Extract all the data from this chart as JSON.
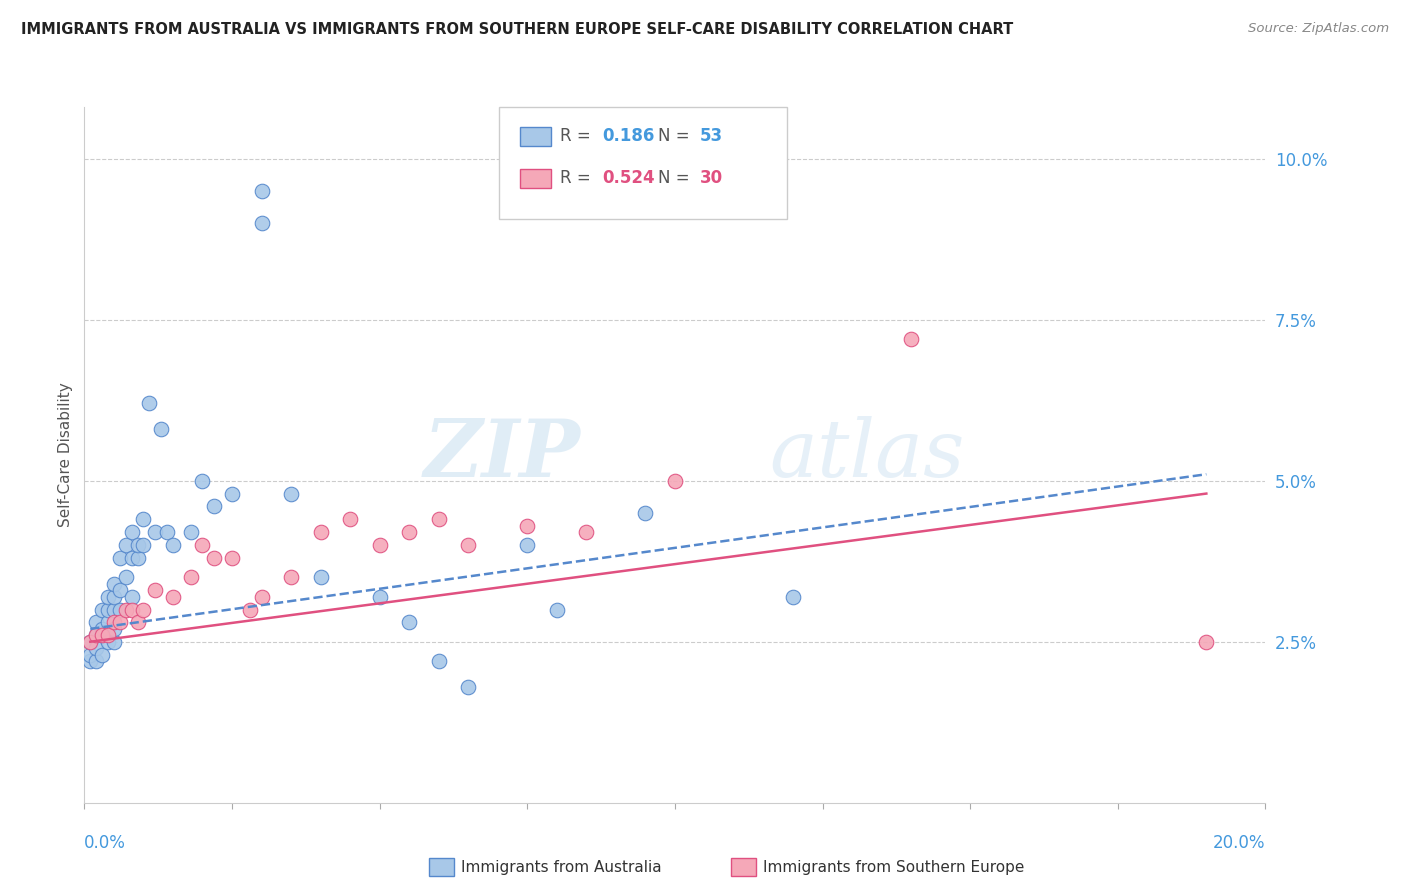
{
  "title": "IMMIGRANTS FROM AUSTRALIA VS IMMIGRANTS FROM SOUTHERN EUROPE SELF-CARE DISABILITY CORRELATION CHART",
  "source": "Source: ZipAtlas.com",
  "ylabel": "Self-Care Disability",
  "y_ticks": [
    0.025,
    0.05,
    0.075,
    0.1
  ],
  "y_tick_labels": [
    "2.5%",
    "5.0%",
    "7.5%",
    "10.0%"
  ],
  "x_range": [
    0.0,
    0.2
  ],
  "y_range": [
    0.0,
    0.108
  ],
  "color_australia": "#a8c8e8",
  "color_southern_europe": "#f5a8b8",
  "color_australia_line": "#5588cc",
  "color_southern_europe_line": "#e05080",
  "color_axis_labels": "#4499dd",
  "color_title": "#222222",
  "watermark_zip": "ZIP",
  "watermark_atlas": "atlas",
  "aus_line_start_x": 0.001,
  "aus_line_end_x": 0.19,
  "aus_line_start_y": 0.027,
  "aus_line_end_y": 0.051,
  "seu_line_start_x": 0.001,
  "seu_line_end_x": 0.19,
  "seu_line_start_y": 0.025,
  "seu_line_end_y": 0.048,
  "australia_x": [
    0.001,
    0.001,
    0.001,
    0.002,
    0.002,
    0.002,
    0.002,
    0.003,
    0.003,
    0.003,
    0.003,
    0.004,
    0.004,
    0.004,
    0.004,
    0.005,
    0.005,
    0.005,
    0.005,
    0.005,
    0.006,
    0.006,
    0.006,
    0.007,
    0.007,
    0.008,
    0.008,
    0.008,
    0.009,
    0.009,
    0.01,
    0.01,
    0.011,
    0.012,
    0.013,
    0.014,
    0.015,
    0.018,
    0.02,
    0.022,
    0.025,
    0.03,
    0.03,
    0.035,
    0.04,
    0.05,
    0.055,
    0.06,
    0.065,
    0.075,
    0.08,
    0.095,
    0.12
  ],
  "australia_y": [
    0.022,
    0.023,
    0.025,
    0.022,
    0.024,
    0.026,
    0.028,
    0.023,
    0.026,
    0.027,
    0.03,
    0.025,
    0.028,
    0.03,
    0.032,
    0.025,
    0.027,
    0.03,
    0.032,
    0.034,
    0.03,
    0.033,
    0.038,
    0.035,
    0.04,
    0.032,
    0.038,
    0.042,
    0.038,
    0.04,
    0.04,
    0.044,
    0.062,
    0.042,
    0.058,
    0.042,
    0.04,
    0.042,
    0.05,
    0.046,
    0.048,
    0.09,
    0.095,
    0.048,
    0.035,
    0.032,
    0.028,
    0.022,
    0.018,
    0.04,
    0.03,
    0.045,
    0.032
  ],
  "s_europe_x": [
    0.001,
    0.002,
    0.003,
    0.004,
    0.005,
    0.006,
    0.007,
    0.008,
    0.009,
    0.01,
    0.012,
    0.015,
    0.018,
    0.02,
    0.022,
    0.025,
    0.028,
    0.03,
    0.035,
    0.04,
    0.045,
    0.05,
    0.055,
    0.06,
    0.065,
    0.075,
    0.085,
    0.1,
    0.14,
    0.19
  ],
  "s_europe_y": [
    0.025,
    0.026,
    0.026,
    0.026,
    0.028,
    0.028,
    0.03,
    0.03,
    0.028,
    0.03,
    0.033,
    0.032,
    0.035,
    0.04,
    0.038,
    0.038,
    0.03,
    0.032,
    0.035,
    0.042,
    0.044,
    0.04,
    0.042,
    0.044,
    0.04,
    0.043,
    0.042,
    0.05,
    0.072,
    0.025
  ]
}
